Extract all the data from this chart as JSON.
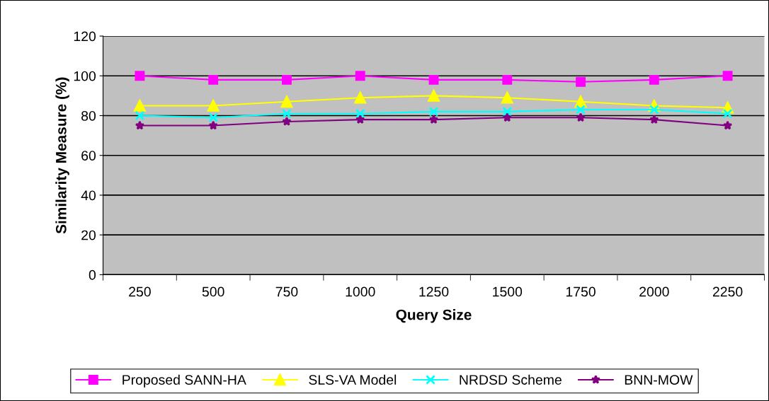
{
  "chart_data": {
    "type": "line",
    "xlabel": "Query Size",
    "ylabel": "Similarity Measure (%)",
    "categories": [
      "250",
      "500",
      "750",
      "1000",
      "1250",
      "1500",
      "1750",
      "2000",
      "2250"
    ],
    "ylim": [
      0,
      120
    ],
    "yticks": [
      0,
      20,
      40,
      60,
      80,
      100,
      120
    ],
    "grid": "y",
    "legend": "bottom",
    "series": [
      {
        "name": "Proposed SANN-HA",
        "color": "#ff00ff",
        "marker": "square",
        "values": [
          100,
          98,
          98,
          100,
          98,
          98,
          97,
          98,
          100
        ]
      },
      {
        "name": "SLS-VA Model",
        "color": "#ffff00",
        "marker": "triangle",
        "values": [
          85,
          85,
          87,
          89,
          90,
          89,
          87,
          85,
          84
        ]
      },
      {
        "name": "NRDSD Scheme",
        "color": "#00ffff",
        "marker": "cross",
        "values": [
          80,
          79,
          81,
          81,
          82,
          82,
          83,
          83,
          81
        ]
      },
      {
        "name": "BNN-MOW",
        "color": "#800080",
        "marker": "star",
        "values": [
          75,
          75,
          77,
          78,
          78,
          79,
          79,
          78,
          75
        ]
      }
    ]
  }
}
